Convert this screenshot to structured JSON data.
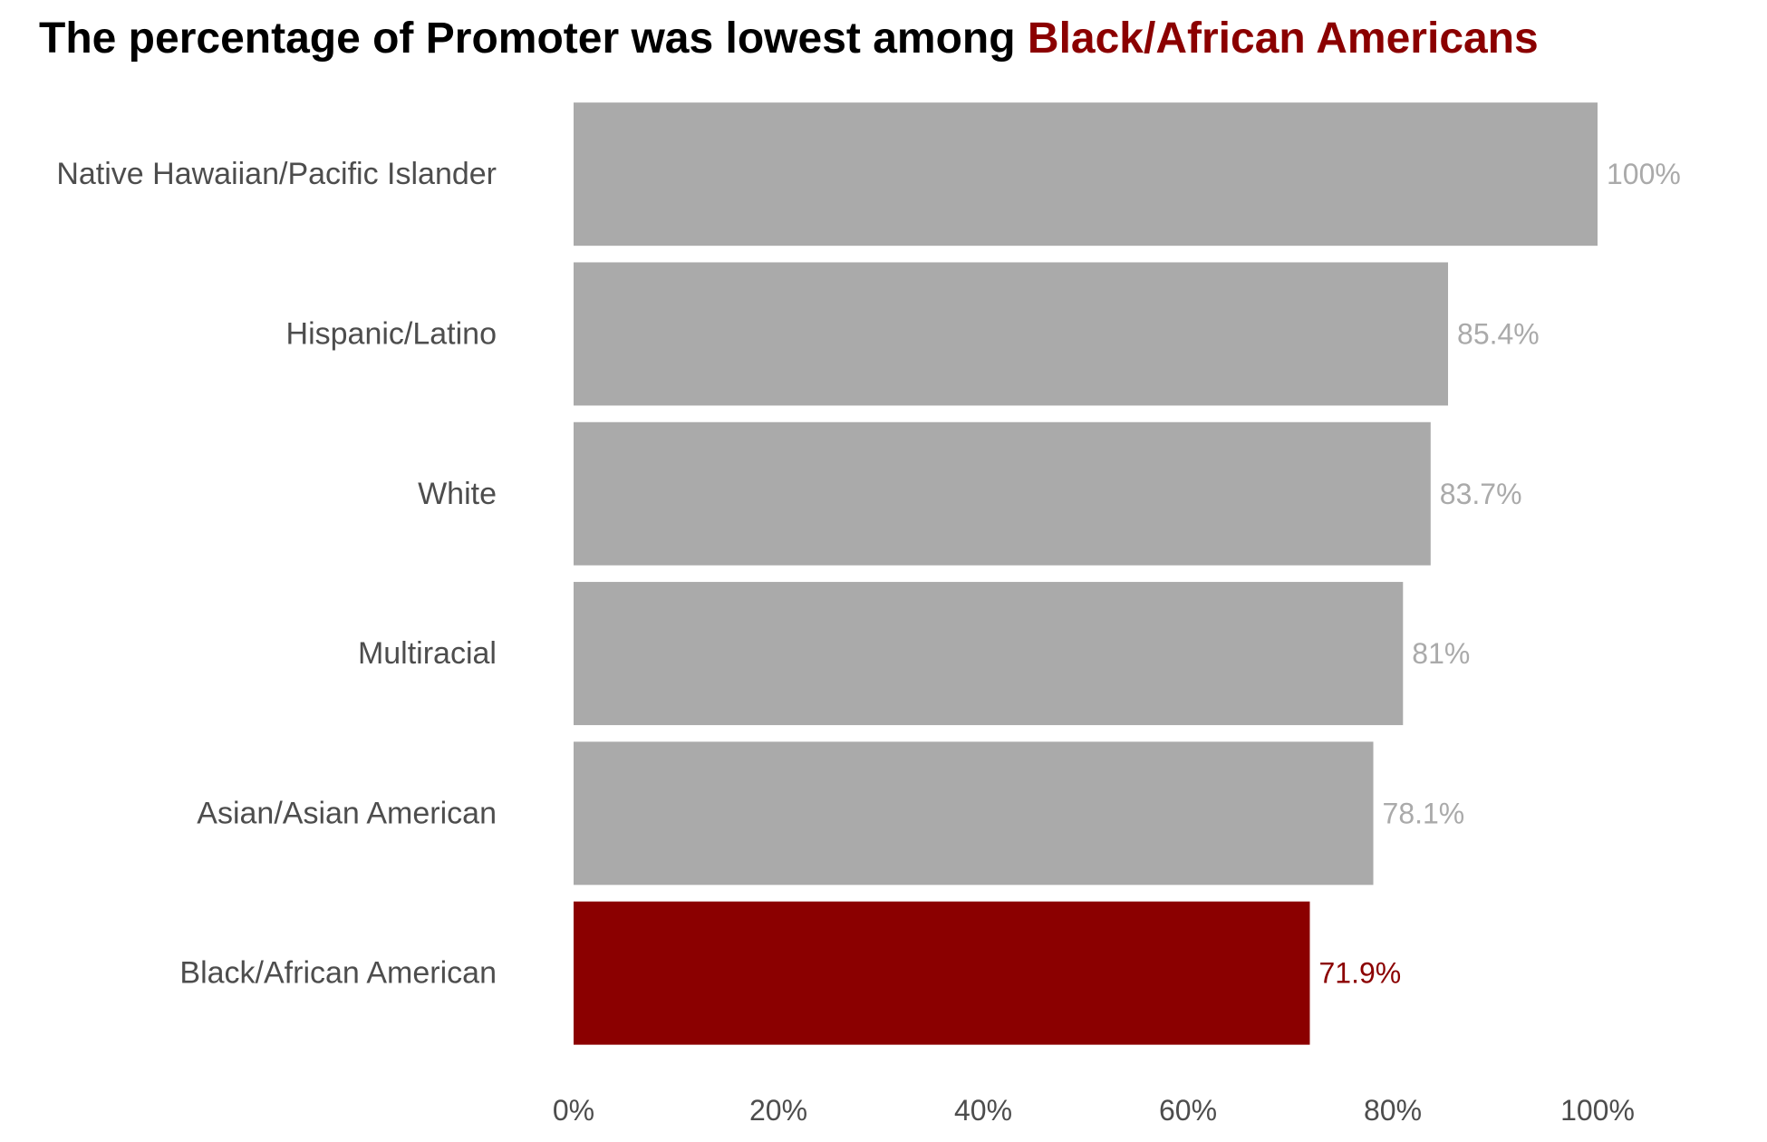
{
  "chart_data": {
    "type": "bar",
    "orientation": "horizontal",
    "title": {
      "text": "The percentage of Promoter was lowest among",
      "highlight": "Black/African Americans"
    },
    "categories": [
      "Native Hawaiian/Pacific Islander",
      "Hispanic/Latino",
      "White",
      "Multiracial",
      "Asian/Asian American",
      "Black/African American"
    ],
    "values": [
      100,
      85.4,
      83.7,
      81,
      78.1,
      71.9
    ],
    "value_labels": [
      "100%",
      "85.4%",
      "83.7%",
      "81%",
      "78.1%",
      "71.9%"
    ],
    "highlight_category": "Black/African American",
    "xlim": [
      0,
      100
    ],
    "xticks": [
      0,
      20,
      40,
      60,
      80,
      100
    ],
    "xtick_labels": [
      "0%",
      "20%",
      "40%",
      "60%",
      "80%",
      "100%"
    ],
    "xlabel": "",
    "ylabel": "",
    "grid": false,
    "legend": "none",
    "colors": {
      "bar": "#aaaaaa",
      "highlight": "#8b0000",
      "label": "#aaaaaa",
      "category_text": "#4d4d4d",
      "tick_text": "#4d4d4d"
    }
  }
}
